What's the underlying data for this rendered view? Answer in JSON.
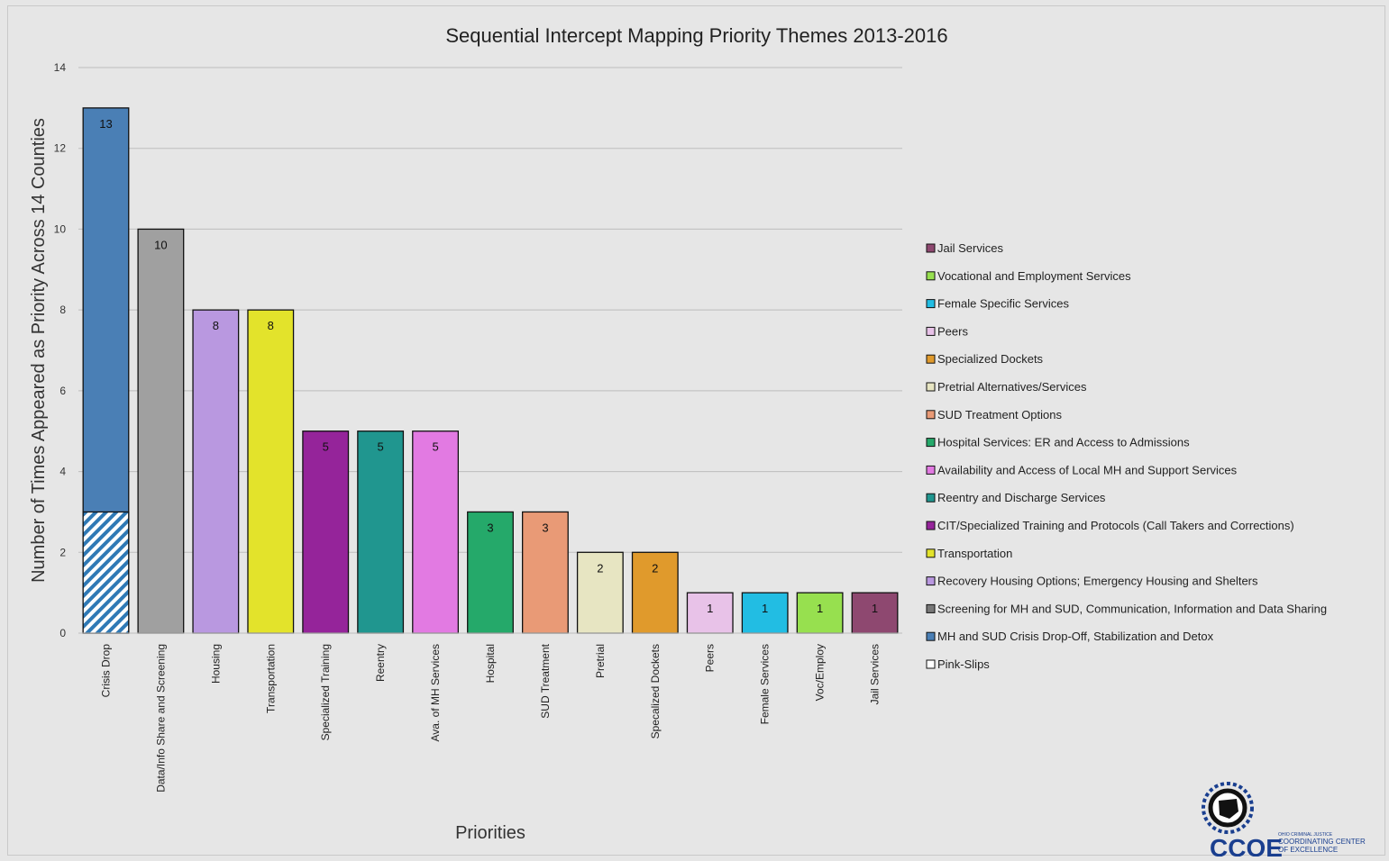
{
  "chart_data": {
    "type": "bar",
    "title": "Sequential Intercept Mapping Priority Themes 2013-2016",
    "xlabel": "Priorities",
    "ylabel": "Number of Times Appeared as Priority Across 14 Counties",
    "ylim": [
      0,
      14
    ],
    "yticks": [
      "0",
      "2",
      "4",
      "6",
      "8",
      "10",
      "12",
      "14"
    ],
    "grid": true,
    "legend_position": "right",
    "categories": [
      "Crisis Drop",
      "Data/Info Share and Screening",
      "Housing",
      "Transportation",
      "Specialized Training",
      "Reentry",
      "Ava. of MH Services",
      "Hospital",
      "SUD Treatment",
      "Pretrial",
      "Specalized Dockets",
      "Peers",
      "Female Services",
      "Voc/Employ",
      "Jail Services"
    ],
    "values": [
      13,
      10,
      8,
      8,
      5,
      5,
      5,
      3,
      3,
      2,
      2,
      1,
      1,
      1,
      1
    ],
    "value_labels": [
      "13",
      "10",
      "8",
      "8",
      "5",
      "5",
      "5",
      "3",
      "3",
      "2",
      "2",
      "1",
      "1",
      "1",
      "1"
    ],
    "colors": [
      "#4a7fb5",
      "#a0a0a0",
      "#b998e0",
      "#e3e32b",
      "#95249a",
      "#20968f",
      "#e27ae2",
      "#25a96a",
      "#e99a76",
      "#e7e5c2",
      "#e09a2c",
      "#e8c2e8",
      "#22bde3",
      "#97e04f",
      "#8e4870"
    ],
    "pink_slips": {
      "category": "Crisis Drop",
      "value": 3,
      "color": "#2f79b5"
    },
    "legend": [
      {
        "label": "Jail Services",
        "color": "#8e4870"
      },
      {
        "label": "Vocational and Employment Services",
        "color": "#97e04f"
      },
      {
        "label": "Female Specific Services",
        "color": "#22bde3"
      },
      {
        "label": "Peers",
        "color": "#e8c2e8"
      },
      {
        "label": "Specialized Dockets",
        "color": "#e09a2c"
      },
      {
        "label": "Pretrial Alternatives/Services",
        "color": "#e7e5c2"
      },
      {
        "label": "SUD Treatment Options",
        "color": "#e99a76"
      },
      {
        "label": "Hospital Services: ER and Access to Admissions",
        "color": "#25a96a"
      },
      {
        "label": "Availability and Access of Local MH and Support Services",
        "color": "#e27ae2"
      },
      {
        "label": "Reentry and Discharge Services",
        "color": "#20968f"
      },
      {
        "label": "CIT/Specialized Training and Protocols (Call Takers and Corrections)",
        "color": "#95249a"
      },
      {
        "label": "Transportation",
        "color": "#e3e32b"
      },
      {
        "label": "Recovery Housing Options; Emergency Housing and Shelters",
        "color": "#b998e0"
      },
      {
        "label": "Screening for MH and SUD, Communication, Information and Data Sharing",
        "color": "#777777"
      },
      {
        "label": "MH and SUD Crisis Drop-Off, Stabilization and Detox",
        "color": "#4a7fb5"
      },
      {
        "label": "Pink-Slips",
        "color": "#ffffff"
      }
    ]
  },
  "logo": {
    "acronym": "CCOE",
    "small_text": "OHIO CRIMINAL JUSTICE",
    "line1": "COORDINATING CENTER",
    "line2": "OF EXCELLENCE",
    "color": "#1a3f8f"
  }
}
